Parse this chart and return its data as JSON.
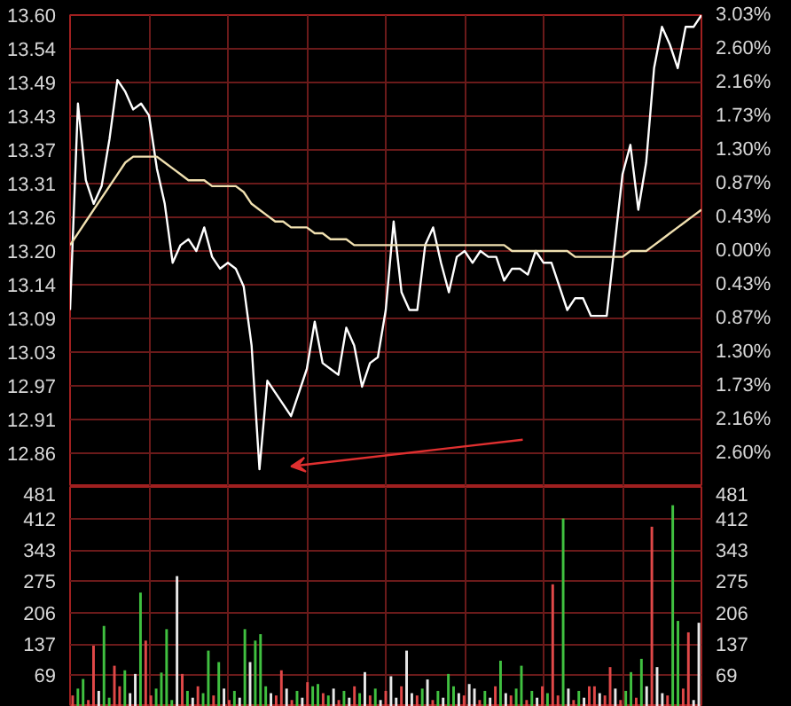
{
  "chart_data": [
    {
      "type": "line",
      "categories": [
        null,
        null,
        null,
        null,
        null,
        null,
        null,
        null,
        null,
        null,
        null,
        null,
        null,
        null,
        null,
        null,
        null,
        null,
        null,
        null,
        null,
        null,
        null,
        null,
        null,
        null,
        null,
        null,
        null,
        null,
        null,
        null,
        null,
        null,
        null,
        null,
        null,
        null,
        null,
        null,
        null,
        null,
        null,
        null,
        null,
        null,
        null,
        null,
        null,
        null,
        null,
        null,
        null,
        null,
        null,
        null,
        null,
        null,
        null,
        null,
        null,
        null,
        null,
        null,
        null,
        null,
        null,
        null,
        null,
        null,
        null,
        null,
        null,
        null,
        null,
        null,
        null,
        null,
        null,
        null,
        null
      ],
      "ylim": [
        12.8,
        13.6
      ],
      "yticks": [
        {
          "value": 13.6,
          "label": "13.60"
        },
        {
          "value": 13.543,
          "label": "13.54"
        },
        {
          "value": 13.486,
          "label": "13.49"
        },
        {
          "value": 13.429,
          "label": "13.43"
        },
        {
          "value": 13.371,
          "label": "13.37"
        },
        {
          "value": 13.314,
          "label": "13.31"
        },
        {
          "value": 13.257,
          "label": "13.26"
        },
        {
          "value": 13.2,
          "label": "13.20"
        },
        {
          "value": 13.143,
          "label": "13.14"
        },
        {
          "value": 13.086,
          "label": "13.09"
        },
        {
          "value": 13.029,
          "label": "13.03"
        },
        {
          "value": 12.971,
          "label": "12.97"
        },
        {
          "value": 12.914,
          "label": "12.91"
        },
        {
          "value": 12.857,
          "label": "12.86"
        }
      ],
      "y2lim": [
        -3.03,
        3.03
      ],
      "y2ticks": [
        {
          "value": 3.03,
          "label": "3.03%"
        },
        {
          "value": 2.6,
          "label": "2.60%"
        },
        {
          "value": 2.16,
          "label": "2.16%"
        },
        {
          "value": 1.73,
          "label": "1.73%"
        },
        {
          "value": 1.3,
          "label": "1.30%"
        },
        {
          "value": 0.87,
          "label": "0.87%"
        },
        {
          "value": 0.43,
          "label": "0.43%"
        },
        {
          "value": 0,
          "label": "0.00%"
        },
        {
          "value": -0.43,
          "label": "0.43%"
        },
        {
          "value": -0.87,
          "label": "0.87%"
        },
        {
          "value": -1.3,
          "label": "1.30%"
        },
        {
          "value": -1.73,
          "label": "1.73%"
        },
        {
          "value": -2.16,
          "label": "2.16%"
        },
        {
          "value": -2.6,
          "label": "2.60%"
        }
      ],
      "tick_labels": "y",
      "grid": true,
      "series": [
        {
          "color": "#ffffff",
          "values": [
            13.1,
            13.45,
            13.32,
            13.28,
            13.31,
            13.39,
            13.49,
            13.47,
            13.44,
            13.45,
            13.43,
            13.34,
            13.28,
            13.18,
            13.21,
            13.22,
            13.2,
            13.24,
            13.19,
            13.17,
            13.18,
            13.17,
            13.14,
            13.04,
            12.83,
            12.98,
            12.96,
            12.94,
            12.92,
            12.96,
            13.0,
            13.08,
            13.01,
            13.0,
            12.99,
            13.07,
            13.04,
            12.97,
            13.01,
            13.02,
            13.1,
            13.25,
            13.13,
            13.1,
            13.1,
            13.21,
            13.24,
            13.18,
            13.13,
            13.19,
            13.2,
            13.18,
            13.2,
            13.19,
            13.19,
            13.15,
            13.17,
            13.17,
            13.16,
            13.2,
            13.18,
            13.18,
            13.14,
            13.1,
            13.12,
            13.12,
            13.09,
            13.09,
            13.09,
            13.21,
            13.33,
            13.38,
            13.27,
            13.35,
            13.51,
            13.58,
            13.55,
            13.51,
            13.58,
            13.58,
            13.6
          ]
        },
        {
          "color": "#f0e0b0",
          "values": [
            13.21,
            13.23,
            13.25,
            13.27,
            13.29,
            13.31,
            13.33,
            13.35,
            13.36,
            13.36,
            13.36,
            13.36,
            13.35,
            13.34,
            13.33,
            13.32,
            13.32,
            13.32,
            13.31,
            13.31,
            13.31,
            13.31,
            13.3,
            13.28,
            13.27,
            13.26,
            13.25,
            13.25,
            13.24,
            13.24,
            13.24,
            13.23,
            13.23,
            13.22,
            13.22,
            13.22,
            13.21,
            13.21,
            13.21,
            13.21,
            13.21,
            13.21,
            13.21,
            13.21,
            13.21,
            13.21,
            13.21,
            13.21,
            13.21,
            13.21,
            13.21,
            13.21,
            13.21,
            13.21,
            13.21,
            13.21,
            13.2,
            13.2,
            13.2,
            13.2,
            13.2,
            13.2,
            13.2,
            13.2,
            13.19,
            13.19,
            13.19,
            13.19,
            13.19,
            13.19,
            13.19,
            13.2,
            13.2,
            13.2,
            13.21,
            13.22,
            13.23,
            13.24,
            13.25,
            13.26,
            13.27
          ]
        }
      ]
    },
    {
      "type": "bar",
      "categories": [
        null,
        null,
        null,
        null,
        null,
        null,
        null,
        null,
        null,
        null,
        null,
        null,
        null,
        null,
        null,
        null,
        null,
        null,
        null,
        null,
        null,
        null,
        null,
        null,
        null,
        null,
        null,
        null,
        null,
        null,
        null,
        null,
        null,
        null,
        null,
        null,
        null,
        null,
        null,
        null,
        null,
        null,
        null,
        null,
        null,
        null,
        null,
        null,
        null,
        null,
        null,
        null,
        null,
        null,
        null,
        null,
        null,
        null,
        null,
        null,
        null,
        null,
        null,
        null,
        null,
        null,
        null,
        null,
        null,
        null,
        null,
        null,
        null,
        null,
        null,
        null,
        null,
        null,
        null,
        null,
        null,
        null,
        null,
        null,
        null,
        null,
        null,
        null,
        null,
        null,
        null,
        null,
        null,
        null,
        null,
        null,
        null,
        null,
        null,
        null,
        null,
        null,
        null,
        null,
        null,
        null,
        null,
        null,
        null,
        null,
        null,
        null,
        null,
        null,
        null,
        null,
        null,
        null,
        null,
        null,
        null
      ],
      "ylim": [
        0,
        481
      ],
      "yticks": [
        69,
        137,
        206,
        275,
        343,
        412,
        481
      ],
      "y2lim": [
        0,
        481
      ],
      "y2ticks": [
        69,
        137,
        206,
        275,
        343,
        412,
        481
      ],
      "tick_labels": "y",
      "grid": true,
      "values": [
        25,
        40,
        61,
        15,
        134,
        35,
        177,
        20,
        90,
        45,
        80,
        30,
        72,
        250,
        145,
        25,
        40,
        75,
        170,
        15,
        286,
        72,
        35,
        20,
        45,
        30,
        123,
        25,
        98,
        40,
        15,
        35,
        20,
        170,
        98,
        145,
        159,
        45,
        30,
        25,
        80,
        40,
        15,
        35,
        20,
        54,
        45,
        50,
        30,
        25,
        40,
        15,
        35,
        20,
        45,
        30,
        76,
        25,
        40,
        15,
        35,
        67,
        20,
        45,
        123,
        30,
        25,
        40,
        60,
        15,
        35,
        20,
        72,
        45,
        30,
        25,
        50,
        40,
        15,
        35,
        20,
        45,
        101,
        30,
        25,
        40,
        90,
        15,
        35,
        20,
        45,
        30,
        268,
        25,
        412,
        40,
        15,
        35,
        20,
        45,
        45,
        30,
        25,
        87,
        40,
        15,
        35,
        76,
        20,
        105,
        45,
        394,
        87,
        30,
        25,
        441,
        188,
        40,
        163,
        15,
        184
      ],
      "colors": [
        "#e04848",
        "#40c040",
        "#40c040",
        "#e04848",
        "#e04848",
        "#e8e8e8",
        "#40c040",
        "#40c040",
        "#e04848",
        "#e04848",
        "#40c040",
        "#e8e8e8",
        "#e8e8e8",
        "#40c040",
        "#e04848",
        "#e04848",
        "#40c040",
        "#40c040",
        "#40c040",
        "#40c040",
        "#e8e8e8",
        "#e04848",
        "#40c040",
        "#e8e8e8",
        "#e04848",
        "#40c040",
        "#40c040",
        "#e04848",
        "#40c040",
        "#e8e8e8",
        "#e04848",
        "#40c040",
        "#e8e8e8",
        "#40c040",
        "#e8e8e8",
        "#40c040",
        "#40c040",
        "#40c040",
        "#e8e8e8",
        "#e04848",
        "#e04848",
        "#e8e8e8",
        "#e04848",
        "#40c040",
        "#e8e8e8",
        "#e04848",
        "#40c040",
        "#40c040",
        "#e04848",
        "#40c040",
        "#e8e8e8",
        "#e04848",
        "#40c040",
        "#e8e8e8",
        "#e04848",
        "#40c040",
        "#e8e8e8",
        "#e04848",
        "#40c040",
        "#e8e8e8",
        "#e04848",
        "#e8e8e8",
        "#e8e8e8",
        "#e04848",
        "#e8e8e8",
        "#e8e8e8",
        "#e04848",
        "#40c040",
        "#e8e8e8",
        "#e04848",
        "#40c040",
        "#e8e8e8",
        "#40c040",
        "#40c040",
        "#e8e8e8",
        "#e04848",
        "#e8e8e8",
        "#e8e8e8",
        "#e04848",
        "#40c040",
        "#e8e8e8",
        "#e04848",
        "#40c040",
        "#e8e8e8",
        "#e04848",
        "#40c040",
        "#40c040",
        "#e04848",
        "#40c040",
        "#e8e8e8",
        "#e04848",
        "#40c040",
        "#e04848",
        "#e04848",
        "#40c040",
        "#e8e8e8",
        "#e04848",
        "#40c040",
        "#e8e8e8",
        "#e04848",
        "#e04848",
        "#e8e8e8",
        "#e04848",
        "#e04848",
        "#e8e8e8",
        "#e04848",
        "#40c040",
        "#40c040",
        "#e04848",
        "#40c040",
        "#e8e8e8",
        "#e04848",
        "#e8e8e8",
        "#e8e8e8",
        "#e04848",
        "#40c040",
        "#40c040",
        "#e04848",
        "#e04848",
        "#e8e8e8",
        "#e8e8e8"
      ]
    }
  ]
}
